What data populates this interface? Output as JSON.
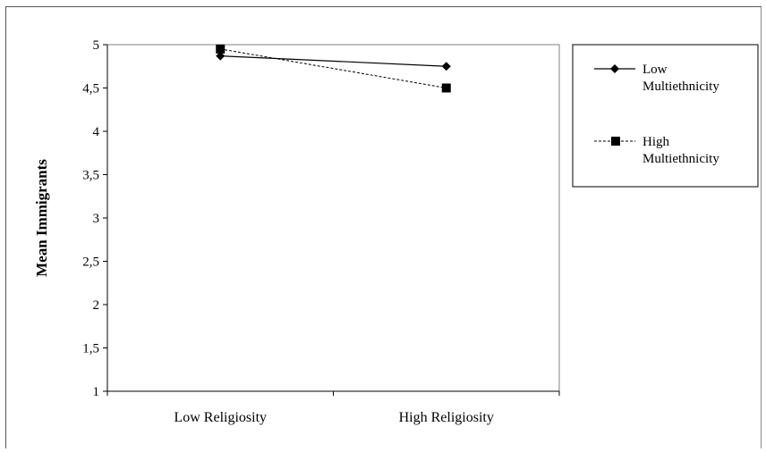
{
  "chart_data": {
    "type": "line",
    "categories": [
      "Low Religiosity",
      "High Religiosity"
    ],
    "series": [
      {
        "name": "Low Multiethnicity",
        "values": [
          4.87,
          4.75
        ],
        "style": "solid",
        "marker": "diamond",
        "color": "#000000"
      },
      {
        "name": "High Multiethnicity",
        "values": [
          4.95,
          4.5
        ],
        "style": "dashed",
        "marker": "square",
        "color": "#000000"
      }
    ],
    "title": "",
    "xlabel": "",
    "ylabel": "Mean Immigrants",
    "ylim": [
      1,
      5
    ],
    "yticks": [
      "1",
      "1,5",
      "2",
      "2,5",
      "3",
      "3,5",
      "4",
      "4,5",
      "5"
    ],
    "ytick_values": [
      1,
      1.5,
      2,
      2.5,
      3,
      3.5,
      4,
      4.5,
      5
    ],
    "grid": false,
    "legend_position": "right",
    "legend": [
      {
        "line1": "Low",
        "line2": "Multiethnicity"
      },
      {
        "line1": "High",
        "line2": "Multiethnicity"
      }
    ]
  }
}
